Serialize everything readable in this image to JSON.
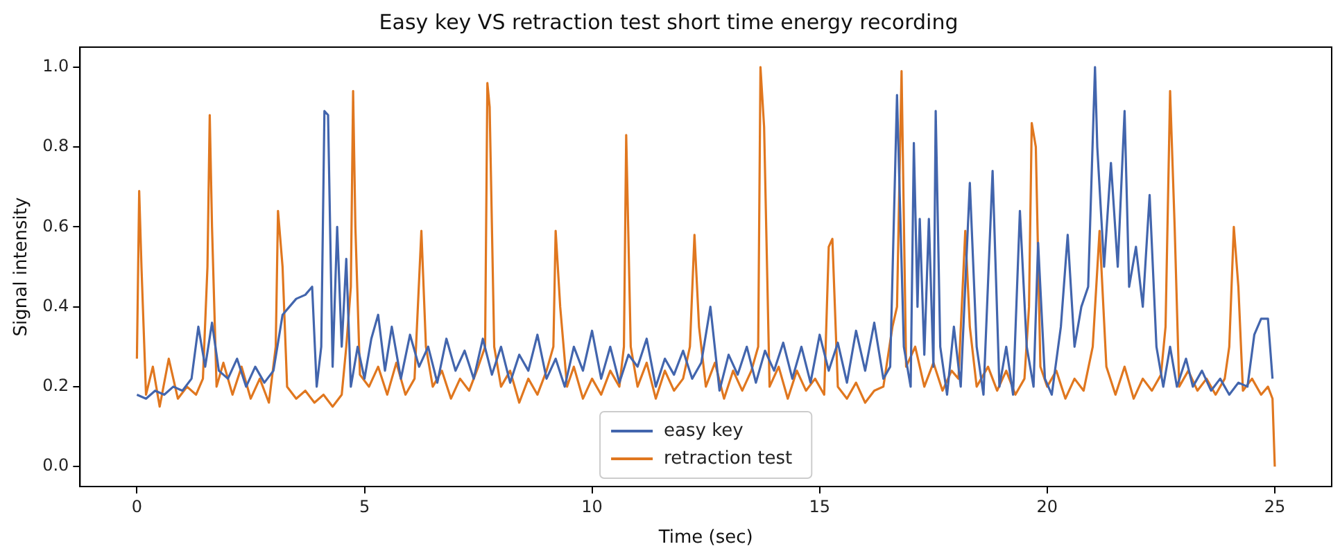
{
  "chart_data": {
    "type": "line",
    "title": "Easy key VS retraction test short time energy recording",
    "xlabel": "Time (sec)",
    "ylabel": "Signal intensity",
    "xlim": [
      -1.25,
      26.25
    ],
    "xticks": [
      0,
      5,
      10,
      15,
      20,
      25
    ],
    "ylim": [
      -0.05,
      1.05
    ],
    "yticks": [
      {
        "value": 0,
        "label": "0.0"
      },
      {
        "value": 0.2,
        "label": "0.2"
      },
      {
        "value": 0.4,
        "label": "0.4"
      },
      {
        "value": 0.6,
        "label": "0.6"
      },
      {
        "value": 0.8,
        "label": "0.8"
      },
      {
        "value": 1,
        "label": "1.0"
      }
    ],
    "grid": false,
    "legend": "bottom",
    "marker": "none",
    "line_style": "solid",
    "series": [
      {
        "name": "easy key",
        "color": "#4265ad",
        "x": [
          0,
          0.2,
          0.4,
          0.6,
          0.8,
          1.0,
          1.2,
          1.35,
          1.5,
          1.65,
          1.8,
          2.0,
          2.2,
          2.4,
          2.6,
          2.8,
          3.0,
          3.2,
          3.35,
          3.5,
          3.7,
          3.85,
          3.95,
          4.05,
          4.12,
          4.2,
          4.3,
          4.4,
          4.5,
          4.6,
          4.7,
          4.85,
          5.0,
          5.15,
          5.3,
          5.45,
          5.6,
          5.8,
          6.0,
          6.2,
          6.4,
          6.6,
          6.8,
          7.0,
          7.2,
          7.4,
          7.6,
          7.8,
          8.0,
          8.2,
          8.4,
          8.6,
          8.8,
          9.0,
          9.2,
          9.4,
          9.6,
          9.8,
          10.0,
          10.2,
          10.4,
          10.6,
          10.8,
          11.0,
          11.2,
          11.4,
          11.6,
          11.8,
          12.0,
          12.2,
          12.4,
          12.6,
          12.8,
          13.0,
          13.2,
          13.4,
          13.6,
          13.8,
          14.0,
          14.2,
          14.4,
          14.6,
          14.8,
          15.0,
          15.2,
          15.4,
          15.6,
          15.8,
          16.0,
          16.2,
          16.4,
          16.55,
          16.7,
          16.85,
          17.0,
          17.07,
          17.15,
          17.2,
          17.3,
          17.4,
          17.5,
          17.55,
          17.65,
          17.8,
          17.95,
          18.1,
          18.3,
          18.45,
          18.6,
          18.8,
          18.95,
          19.1,
          19.25,
          19.4,
          19.55,
          19.7,
          19.8,
          19.95,
          20.1,
          20.3,
          20.45,
          20.6,
          20.75,
          20.9,
          21.05,
          21.1,
          21.25,
          21.4,
          21.55,
          21.7,
          21.8,
          21.95,
          22.1,
          22.25,
          22.4,
          22.55,
          22.7,
          22.85,
          23.05,
          23.2,
          23.4,
          23.6,
          23.8,
          24.0,
          24.2,
          24.4,
          24.55,
          24.7,
          24.85,
          24.95
        ],
        "values": [
          0.18,
          0.17,
          0.19,
          0.18,
          0.2,
          0.19,
          0.22,
          0.35,
          0.25,
          0.36,
          0.24,
          0.22,
          0.27,
          0.2,
          0.25,
          0.21,
          0.24,
          0.38,
          0.4,
          0.42,
          0.43,
          0.45,
          0.2,
          0.3,
          0.89,
          0.88,
          0.25,
          0.6,
          0.3,
          0.52,
          0.2,
          0.3,
          0.22,
          0.32,
          0.38,
          0.24,
          0.35,
          0.22,
          0.33,
          0.25,
          0.3,
          0.21,
          0.32,
          0.24,
          0.29,
          0.22,
          0.32,
          0.23,
          0.3,
          0.21,
          0.28,
          0.24,
          0.33,
          0.22,
          0.27,
          0.2,
          0.3,
          0.24,
          0.34,
          0.22,
          0.3,
          0.21,
          0.28,
          0.25,
          0.32,
          0.2,
          0.27,
          0.23,
          0.29,
          0.22,
          0.26,
          0.4,
          0.19,
          0.28,
          0.23,
          0.3,
          0.21,
          0.29,
          0.24,
          0.31,
          0.22,
          0.3,
          0.21,
          0.33,
          0.24,
          0.31,
          0.21,
          0.34,
          0.24,
          0.36,
          0.22,
          0.25,
          0.93,
          0.3,
          0.2,
          0.81,
          0.4,
          0.62,
          0.28,
          0.62,
          0.25,
          0.89,
          0.3,
          0.18,
          0.35,
          0.2,
          0.71,
          0.3,
          0.18,
          0.74,
          0.2,
          0.3,
          0.18,
          0.64,
          0.3,
          0.2,
          0.56,
          0.22,
          0.18,
          0.35,
          0.58,
          0.3,
          0.4,
          0.45,
          1.0,
          0.8,
          0.5,
          0.76,
          0.5,
          0.89,
          0.45,
          0.55,
          0.4,
          0.68,
          0.3,
          0.2,
          0.3,
          0.2,
          0.27,
          0.2,
          0.24,
          0.19,
          0.22,
          0.18,
          0.21,
          0.2,
          0.33,
          0.37,
          0.37,
          0.22
        ]
      },
      {
        "name": "retraction test",
        "color": "#e0771f",
        "x": [
          0,
          0.05,
          0.1,
          0.2,
          0.35,
          0.5,
          0.7,
          0.9,
          1.1,
          1.3,
          1.45,
          1.55,
          1.6,
          1.65,
          1.75,
          1.9,
          2.1,
          2.3,
          2.5,
          2.7,
          2.9,
          3.05,
          3.1,
          3.2,
          3.3,
          3.5,
          3.7,
          3.9,
          4.1,
          4.3,
          4.5,
          4.6,
          4.7,
          4.75,
          4.8,
          4.9,
          5.1,
          5.3,
          5.5,
          5.7,
          5.9,
          6.1,
          6.25,
          6.35,
          6.5,
          6.7,
          6.9,
          7.1,
          7.3,
          7.5,
          7.65,
          7.7,
          7.75,
          7.85,
          8.0,
          8.2,
          8.4,
          8.6,
          8.8,
          9.0,
          9.15,
          9.2,
          9.3,
          9.45,
          9.6,
          9.8,
          10.0,
          10.2,
          10.4,
          10.6,
          10.7,
          10.75,
          10.85,
          11.0,
          11.2,
          11.4,
          11.6,
          11.8,
          12.0,
          12.15,
          12.25,
          12.35,
          12.5,
          12.7,
          12.9,
          13.1,
          13.3,
          13.5,
          13.65,
          13.7,
          13.78,
          13.9,
          14.1,
          14.3,
          14.5,
          14.7,
          14.9,
          15.1,
          15.2,
          15.28,
          15.4,
          15.6,
          15.8,
          16.0,
          16.2,
          16.4,
          16.6,
          16.7,
          16.8,
          16.9,
          17.1,
          17.3,
          17.5,
          17.7,
          17.9,
          18.05,
          18.2,
          18.3,
          18.45,
          18.7,
          18.9,
          19.1,
          19.3,
          19.5,
          19.6,
          19.66,
          19.75,
          19.85,
          20.0,
          20.2,
          20.4,
          20.6,
          20.8,
          21.0,
          21.15,
          21.3,
          21.5,
          21.7,
          21.9,
          22.1,
          22.3,
          22.5,
          22.6,
          22.7,
          22.8,
          22.9,
          23.1,
          23.3,
          23.5,
          23.7,
          23.9,
          24.0,
          24.1,
          24.2,
          24.3,
          24.5,
          24.7,
          24.85,
          24.95,
          25.0
        ],
        "values": [
          0.27,
          0.69,
          0.5,
          0.18,
          0.25,
          0.15,
          0.27,
          0.17,
          0.2,
          0.18,
          0.22,
          0.5,
          0.88,
          0.6,
          0.2,
          0.26,
          0.18,
          0.25,
          0.17,
          0.22,
          0.16,
          0.3,
          0.64,
          0.5,
          0.2,
          0.17,
          0.19,
          0.16,
          0.18,
          0.15,
          0.18,
          0.3,
          0.45,
          0.94,
          0.6,
          0.23,
          0.2,
          0.25,
          0.18,
          0.26,
          0.18,
          0.22,
          0.59,
          0.3,
          0.2,
          0.24,
          0.17,
          0.22,
          0.19,
          0.25,
          0.3,
          0.96,
          0.9,
          0.3,
          0.2,
          0.24,
          0.16,
          0.22,
          0.18,
          0.24,
          0.3,
          0.59,
          0.4,
          0.2,
          0.25,
          0.17,
          0.22,
          0.18,
          0.24,
          0.2,
          0.3,
          0.83,
          0.3,
          0.2,
          0.26,
          0.17,
          0.24,
          0.19,
          0.22,
          0.3,
          0.58,
          0.35,
          0.2,
          0.26,
          0.17,
          0.24,
          0.19,
          0.24,
          0.3,
          1.0,
          0.85,
          0.2,
          0.25,
          0.17,
          0.24,
          0.19,
          0.22,
          0.18,
          0.55,
          0.57,
          0.2,
          0.17,
          0.21,
          0.16,
          0.19,
          0.2,
          0.35,
          0.4,
          0.99,
          0.25,
          0.3,
          0.2,
          0.26,
          0.19,
          0.24,
          0.22,
          0.59,
          0.35,
          0.2,
          0.25,
          0.19,
          0.24,
          0.18,
          0.22,
          0.4,
          0.86,
          0.8,
          0.25,
          0.2,
          0.24,
          0.17,
          0.22,
          0.19,
          0.3,
          0.59,
          0.25,
          0.18,
          0.25,
          0.17,
          0.22,
          0.19,
          0.23,
          0.35,
          0.94,
          0.6,
          0.2,
          0.24,
          0.19,
          0.22,
          0.18,
          0.22,
          0.3,
          0.6,
          0.45,
          0.19,
          0.22,
          0.18,
          0.2,
          0.17,
          0.0
        ]
      }
    ]
  }
}
